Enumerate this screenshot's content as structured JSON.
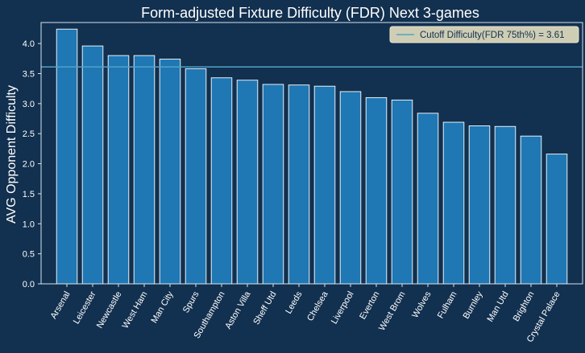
{
  "colors": {
    "background": "#12304f",
    "bar_fill": "#1f77b4",
    "bar_edge": "#ffffff",
    "axes": "#d8e4ee",
    "cutoff_line": "#4fa3c8",
    "legend_bg": "#cfcdb4",
    "text": "#ffffff"
  },
  "chart_data": {
    "type": "bar",
    "title": "Form-adjusted Fixture Difficulty (FDR) Next 3-games",
    "xlabel": "",
    "ylabel": "AVG Opponent Difficulty",
    "ylim": [
      0,
      4.35
    ],
    "yticks": [
      "0.0",
      "0.5",
      "1.0",
      "1.5",
      "2.0",
      "2.5",
      "3.0",
      "3.5",
      "4.0"
    ],
    "categories": [
      "Arsenal",
      "Leicester",
      "Newcastle",
      "West Ham",
      "Man City",
      "Spurs",
      "Southampton",
      "Aston Villa",
      "Sheff Utd",
      "Leeds",
      "Chelsea",
      "Liverpool",
      "Everton",
      "West Brom",
      "Wolves",
      "Fulham",
      "Burnley",
      "Man Utd",
      "Brighton",
      "Crystal Palace"
    ],
    "values": [
      4.24,
      3.96,
      3.8,
      3.8,
      3.74,
      3.58,
      3.43,
      3.39,
      3.32,
      3.31,
      3.29,
      3.2,
      3.1,
      3.06,
      2.84,
      2.69,
      2.63,
      2.62,
      2.46,
      2.16
    ],
    "cutoff": {
      "value": 3.61,
      "label": "Cutoff Difficulty(FDR 75th%) = 3.61"
    },
    "legend_position": "top-right",
    "grid": false
  }
}
